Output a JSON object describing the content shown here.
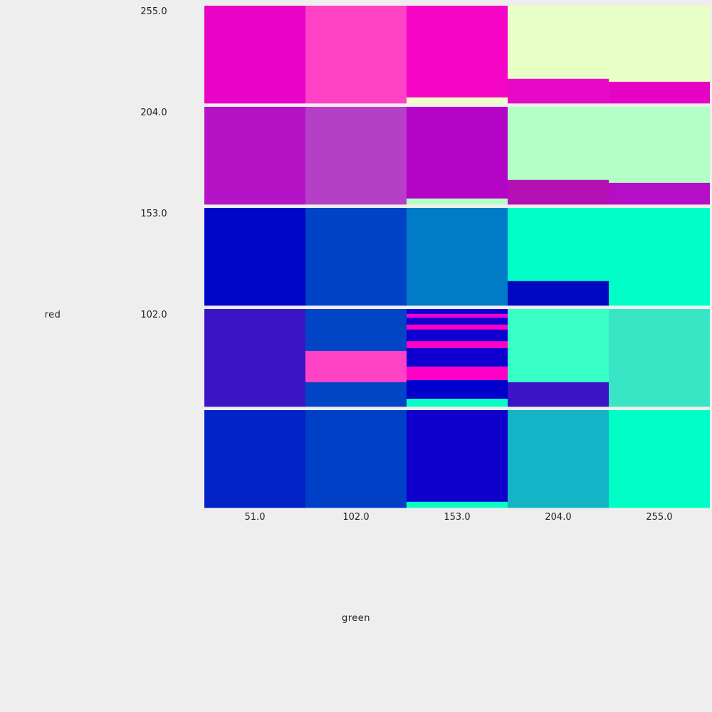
{
  "chart_data": {
    "type": "heatmap",
    "xlabel": "green",
    "ylabel": "red",
    "x_ticks": [
      "51.0",
      "102.0",
      "153.0",
      "204.0",
      "255.0"
    ],
    "y_ticks": [
      "255.0",
      "204.0",
      "153.0",
      "102.0"
    ],
    "grid": false,
    "rows": [
      {
        "red": "255.0",
        "cells": [
          [
            {
              "color": "#e803c6",
              "size": 1
            }
          ],
          [
            {
              "color": "#ff42c6",
              "size": 1
            }
          ],
          [
            {
              "color": "#f505c6",
              "size": 0.94
            },
            {
              "color": "#f0ffc6",
              "size": 0.06
            }
          ],
          [
            {
              "color": "#e8ffc6",
              "size": 0.75
            },
            {
              "color": "#e809c6",
              "size": 0.25
            }
          ],
          [
            {
              "color": "#e8ffc6",
              "size": 0.78
            },
            {
              "color": "#e503c6",
              "size": 0.22
            }
          ]
        ]
      },
      {
        "red": "204.0",
        "cells": [
          [
            {
              "color": "#b414c6",
              "size": 1
            }
          ],
          [
            {
              "color": "#b53fc6",
              "size": 1
            }
          ],
          [
            {
              "color": "#b404c6",
              "size": 0.94
            },
            {
              "color": "#b4ffc6",
              "size": 0.06
            }
          ],
          [
            {
              "color": "#b4ffc6",
              "size": 0.75
            },
            {
              "color": "#b410b4",
              "size": 0.25
            }
          ],
          [
            {
              "color": "#b4ffc6",
              "size": 0.78
            },
            {
              "color": "#b40ec6",
              "size": 0.22
            }
          ]
        ]
      },
      {
        "red": "153.0",
        "cells": [
          [
            {
              "color": "#0006c6",
              "size": 1
            }
          ],
          [
            {
              "color": "#0043c6",
              "size": 1
            }
          ],
          [
            {
              "color": "#007cc6",
              "size": 1
            }
          ],
          [
            {
              "color": "#00ffc6",
              "size": 0.75
            },
            {
              "color": "#0008c2",
              "size": 0.25
            }
          ],
          [
            {
              "color": "#00ffc6",
              "size": 1
            }
          ]
        ]
      },
      {
        "red": "102.0",
        "cells": [
          [
            {
              "color": "#3b14c6",
              "size": 1
            }
          ],
          [
            {
              "color": "#0244c6",
              "size": 0.43
            },
            {
              "color": "#ff42c6",
              "size": 0.32
            },
            {
              "color": "#0244c6",
              "size": 0.25
            }
          ],
          [
            {
              "color": "#1000d0",
              "size": 0.05
            },
            {
              "color": "#f000d6",
              "size": 0.04
            },
            {
              "color": "#1000d0",
              "size": 0.07
            },
            {
              "color": "#ff00c6",
              "size": 0.05
            },
            {
              "color": "#1000d0",
              "size": 0.12
            },
            {
              "color": "#ff00c6",
              "size": 0.07
            },
            {
              "color": "#1000d0",
              "size": 0.19
            },
            {
              "color": "#ff00c6",
              "size": 0.14
            },
            {
              "color": "#0000cc",
              "size": 0.19
            },
            {
              "color": "#0afcc6",
              "size": 0.08
            }
          ],
          [
            {
              "color": "#38ffc6",
              "size": 0.75
            },
            {
              "color": "#3b14c6",
              "size": 0.25
            }
          ],
          [
            {
              "color": "#38e6c6",
              "size": 1
            }
          ]
        ]
      },
      {
        "red": "",
        "cells": [
          [
            {
              "color": "#0222c6",
              "size": 1
            }
          ],
          [
            {
              "color": "#0040c6",
              "size": 1
            }
          ],
          [
            {
              "color": "#1000cc",
              "size": 0.94
            },
            {
              "color": "#0afcc6",
              "size": 0.06
            }
          ],
          [
            {
              "color": "#12b4c6",
              "size": 1
            }
          ],
          [
            {
              "color": "#00ffc6",
              "size": 1
            }
          ]
        ]
      }
    ]
  }
}
